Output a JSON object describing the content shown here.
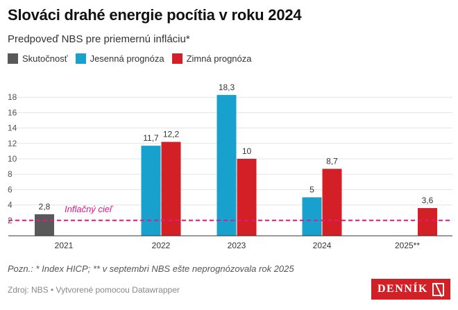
{
  "title": "Slováci drahé energie pocítia v roku 2024",
  "subtitle": "Predpoveď NBS pre priemernú infláciu*",
  "legend": [
    {
      "label": "Skutočnosť",
      "color": "#595959"
    },
    {
      "label": "Jesenná prognóza",
      "color": "#18a1cd"
    },
    {
      "label": "Zimná prognóza",
      "color": "#d32026"
    }
  ],
  "chart_data": {
    "type": "bar",
    "categories": [
      "2021",
      "2022",
      "2023",
      "2024",
      "2025**"
    ],
    "series": [
      {
        "name": "Skutočnosť",
        "color": "#595959",
        "values": [
          2.8,
          null,
          null,
          null,
          null
        ],
        "labels": [
          "2,8",
          "",
          "",
          "",
          ""
        ]
      },
      {
        "name": "Jesenná prognóza",
        "color": "#18a1cd",
        "values": [
          null,
          11.7,
          18.3,
          5,
          null
        ],
        "labels": [
          "",
          "11,7",
          "18,3",
          "5",
          ""
        ]
      },
      {
        "name": "Zimná prognóza",
        "color": "#d32026",
        "values": [
          null,
          12.2,
          10,
          8.7,
          3.6
        ],
        "labels": [
          "",
          "12,2",
          "10",
          "8,7",
          "3,6"
        ]
      }
    ],
    "yticks": [
      2,
      4,
      6,
      8,
      10,
      12,
      14,
      16,
      18
    ],
    "ylim": [
      0,
      19
    ],
    "reference_line": {
      "value": 2,
      "label": "Inflačný cieľ",
      "color": "#e5168c"
    },
    "grid": true
  },
  "note": "Pozn.: * Index HICP; ** v septembri NBS ešte neprognózovala rok 2025",
  "source": "Zdroj: NBS • Vytvorené pomocou Datawrapper",
  "logo": "DENNÍK N"
}
